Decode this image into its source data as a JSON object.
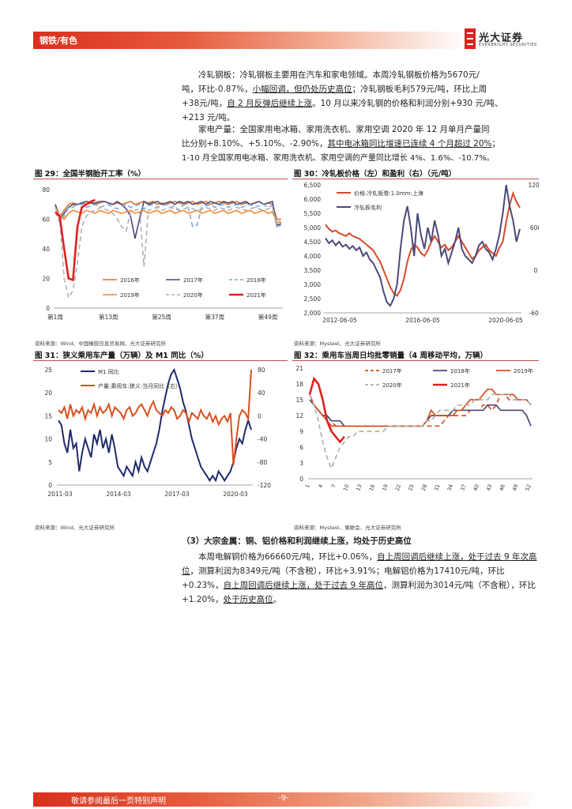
{
  "header": {
    "section": "钢铁/有色",
    "logo_cn": "光大证券",
    "logo_en": "EVERBRIGHT SECURITIES"
  },
  "paragraphs": {
    "p1_lead": "冷轧钢板：",
    "p1_a": "冷轧钢板主要用在汽车和家电领域。本周冷轧钢板价格为",
    "p1_price": "5670",
    "p1_b": "元/",
    "p1_c": "吨，环比",
    "p1_chg1": "-0.87%",
    "p1_d": "，",
    "p1_u1": "小幅回调，但仍处历史高位",
    "p1_e": "；冷轧钢板毛利",
    "p1_margin": "579",
    "p1_f": "元/吨，环比上周",
    "p1_chg2": "+38",
    "p1_g": "元/吨，",
    "p1_u2": "自 2 月反弹后继续上涨",
    "p1_h": "。10 月以来冷轧钢的价格和利润分别+930 元/吨、",
    "p1_i": "+213 元/吨。",
    "p2_lead": "家电产量：",
    "p2_a": "全国家用电冰箱、家用洗衣机、家用空调",
    "p2_year": "2020",
    "p2_b": "年",
    "p2_month": "12",
    "p2_c": "月单月产量同",
    "p2_d": "比分别",
    "p2_v1": "+8.10%",
    "p2_e": "、",
    "p2_v2": "+5.10%",
    "p2_f": "、",
    "p2_v3": "-2.90%",
    "p2_g": "，",
    "p2_u1": "其中电冰箱同比增速已连续 4 个月超过 20%",
    "p2_h": "；",
    "p2_i": "1-10 月全国家用电冰箱、家用洗衣机、家用空调的产量同比增长 4%、1.6%、-10.7%。"
  },
  "figures": {
    "f29_title": "图 29：全国半钢胎开工率（%）",
    "f29_src": "资料来源：Wind、中国橡胶信息贸易网、光大证券研究所",
    "f30_title": "图 30：冷轧板价格（左）和盈利（右）（元/吨）",
    "f30_src": "资料来源：Mysteel、光大证券研究所",
    "f31_title": "图 31：狭义乘用车产量（万辆）及 M1 同比（%）",
    "f31_src": "资料来源：Wind、光大证券研究所",
    "f32_title": "图 32：乘用车当周日均批零销量（4 周移动平均，万辆）",
    "f32_src": "资料来源：Mysteel、乘联会、光大证券研究所"
  },
  "section3": {
    "heading": "（3）大宗金属：铜、铝价格和利润继续上涨，均处于历史高位",
    "s_a": "本周电解铜价格为",
    "s_cu_price": "66660",
    "s_b": "元/吨，环比",
    "s_cu_chg": "+0.06%",
    "s_c": "，",
    "s_u1": "自上周回调后继续上涨，处于过去 9 年次高位",
    "s_d": "，测算利润为",
    "s_cu_profit": "8349",
    "s_e": "元/吨（不含税），环比",
    "s_cu_pchg": "+3.91%",
    "s_f": "；电解铝价格为",
    "s_al_price": "17410",
    "s_g": "元/吨，环比",
    "s_al_chg": "+0.23%",
    "s_h": "，",
    "s_u2": "自上周回调后继续上涨，处于过去 9 年高位",
    "s_i": "，测算利润为",
    "s_al_profit": "3014",
    "s_j": "元/吨（不含税），环比",
    "s_al_pchg": "+1.20%",
    "s_k": "，",
    "s_u3": "处于历史高位",
    "s_l": "。"
  },
  "footer": {
    "disclaimer": "敬请参阅最后一页特别声明",
    "page": "-9-"
  },
  "chart_data": [
    {
      "id": "fig29",
      "type": "line",
      "title": "",
      "ylim": [
        0,
        80
      ],
      "yticks": [
        0,
        20,
        40,
        60,
        80
      ],
      "xticks": [
        "第1周",
        "第13周",
        "第25周",
        "第37周",
        "第49周"
      ],
      "weeks": 52,
      "series": [
        {
          "name": "2016年",
          "color": "#e06c2a",
          "dash": "",
          "values": [
            70,
            62,
            66,
            70,
            71,
            70,
            71,
            70,
            71,
            70,
            71,
            72,
            71,
            70,
            71,
            70,
            71,
            72,
            70,
            71,
            72,
            71,
            72,
            70,
            71,
            70,
            71,
            72,
            71,
            70,
            71,
            72,
            70,
            71,
            72,
            70,
            71,
            72,
            71,
            70,
            71,
            72,
            70,
            71,
            70,
            71,
            72,
            70,
            71,
            70,
            60,
            60
          ]
        },
        {
          "name": "2017年",
          "color": "#4a4a7a",
          "dash": "",
          "values": [
            70,
            60,
            64,
            68,
            70,
            70,
            71,
            72,
            71,
            71,
            72,
            72,
            71,
            70,
            72,
            70,
            67,
            62,
            47,
            60,
            72,
            70,
            71,
            72,
            70,
            71,
            72,
            70,
            72,
            71,
            72,
            70,
            71,
            72,
            70,
            72,
            71,
            70,
            72,
            71,
            72,
            70,
            71,
            72,
            70,
            71,
            72,
            70,
            71,
            72,
            56,
            57
          ]
        },
        {
          "name": "2018年",
          "color": "#7fa9d8",
          "dash": "6,4",
          "values": [
            65,
            58,
            62,
            68,
            68,
            70,
            70,
            68,
            69,
            70,
            68,
            69,
            70,
            68,
            67,
            69,
            70,
            68,
            69,
            70,
            67,
            69,
            70,
            68,
            69,
            70,
            68,
            69,
            66,
            70,
            68,
            55,
            56,
            68,
            69,
            70,
            68,
            69,
            70,
            68,
            69,
            70,
            68,
            69,
            70,
            68,
            69,
            70,
            68,
            69,
            55,
            56
          ]
        },
        {
          "name": "2019年",
          "color": "#f0893c",
          "dash": "",
          "values": [
            68,
            62,
            60,
            64,
            66,
            65,
            64,
            66,
            65,
            64,
            66,
            65,
            64,
            66,
            65,
            64,
            65,
            66,
            64,
            65,
            66,
            64,
            65,
            66,
            64,
            65,
            66,
            64,
            65,
            66,
            64,
            65,
            66,
            64,
            65,
            66,
            64,
            65,
            66,
            64,
            65,
            66,
            64,
            65,
            66,
            64,
            65,
            66,
            64,
            65,
            58,
            58
          ]
        },
        {
          "name": "2020年",
          "color": "#b0b0b0",
          "dash": "6,4",
          "values": [
            68,
            60,
            20,
            7,
            12,
            30,
            55,
            62,
            65,
            66,
            68,
            67,
            66,
            64,
            60,
            55,
            52,
            65,
            66,
            67,
            28,
            66,
            67,
            68,
            66,
            67,
            68,
            67,
            66,
            67,
            68,
            67,
            66,
            67,
            68,
            67,
            66,
            68,
            67,
            66,
            67,
            68,
            67,
            66,
            67,
            68,
            67,
            66,
            67,
            68,
            57,
            60
          ]
        },
        {
          "name": "2021年",
          "color": "#e02020",
          "dash": "",
          "values": [
            65,
            62,
            40,
            20,
            19,
            55,
            68,
            70,
            72,
            73
          ]
        }
      ]
    },
    {
      "id": "fig30",
      "type": "line",
      "title": "",
      "ylim_left": [
        2000,
        6500
      ],
      "ylim_right": [
        -600,
        1200
      ],
      "yticks_left": [
        2000,
        2500,
        3000,
        3500,
        4000,
        4500,
        5000,
        5500,
        6000,
        6500
      ],
      "yticks_right": [
        -600,
        0,
        600,
        1200
      ],
      "xticks": [
        "2012-06-05",
        "2016-06-05",
        "2020-06-05"
      ],
      "series": [
        {
          "name": "价格:冷轧板卷:1.0mm:上海",
          "color": "#d94a2a",
          "axis": "left",
          "values": [
            5100,
            4950,
            4850,
            4900,
            4800,
            4750,
            4700,
            4800,
            4700,
            4650,
            4600,
            4500,
            4400,
            4300,
            4200,
            4000,
            3800,
            3500,
            3200,
            2900,
            2700,
            2600,
            2800,
            3200,
            3800,
            4200,
            4400,
            4300,
            4100,
            4000,
            4200,
            4500,
            4700,
            4500,
            4300,
            4400,
            4200,
            4300,
            4500,
            4700,
            4500,
            4300,
            4100,
            3900,
            4000,
            4200,
            4300,
            4400,
            4200,
            4100,
            4000,
            4300,
            4500,
            5200,
            5800,
            6200,
            5900,
            5700
          ]
        },
        {
          "name": "冷轧板毛利",
          "color": "#4a4a7a",
          "axis": "right",
          "values": [
            450,
            380,
            420,
            350,
            400,
            330,
            360,
            300,
            340,
            280,
            320,
            200,
            250,
            150,
            100,
            0,
            -100,
            -300,
            -450,
            -500,
            -400,
            -200,
            300,
            700,
            900,
            600,
            200,
            800,
            500,
            300,
            600,
            400,
            700,
            500,
            200,
            300,
            100,
            250,
            400,
            600,
            300,
            200,
            150,
            100,
            200,
            350,
            400,
            300,
            250,
            150,
            300,
            500,
            800,
            1200,
            900,
            700,
            400,
            580
          ]
        }
      ]
    },
    {
      "id": "fig31",
      "type": "line",
      "title": "",
      "ylim_left": [
        0,
        25
      ],
      "ylim_right": [
        -120,
        80
      ],
      "yticks_left": [
        0,
        5,
        10,
        15,
        20,
        25
      ],
      "yticks_right": [
        -120,
        -80,
        -40,
        0,
        40,
        80
      ],
      "xticks": [
        "2011-03",
        "2014-03",
        "2017-03",
        "2020-03"
      ],
      "series": [
        {
          "name": "M1 同比",
          "color": "#1e2a6b",
          "axis": "left",
          "values": [
            14,
            13,
            9,
            7,
            12,
            8,
            9,
            3,
            7,
            10,
            8,
            6,
            11,
            9,
            12,
            8,
            10,
            7,
            11,
            8,
            4,
            3,
            2,
            4,
            3,
            2,
            5,
            3,
            6,
            4,
            3,
            5,
            7,
            9,
            12,
            16,
            19,
            22,
            24,
            25,
            23,
            21,
            18,
            16,
            13,
            10,
            8,
            6,
            4,
            3,
            2,
            1,
            2,
            1,
            3,
            2,
            1,
            2,
            3,
            5,
            8,
            10,
            9,
            12,
            14,
            12
          ]
        },
        {
          "name": "产量:乘用车:狭义:当月同比（右）",
          "color": "#d9501c",
          "axis": "right",
          "values": [
            10,
            5,
            15,
            -5,
            20,
            0,
            10,
            5,
            15,
            -5,
            10,
            5,
            20,
            0,
            15,
            5,
            10,
            20,
            0,
            15,
            10,
            5,
            -5,
            10,
            15,
            0,
            5,
            15,
            20,
            10,
            0,
            15,
            25,
            10,
            5,
            0,
            10,
            5,
            15,
            10,
            -5,
            0,
            10,
            5,
            -10,
            5,
            0,
            -5,
            10,
            0,
            -5,
            5,
            -10,
            0,
            -15,
            -5,
            0,
            -10,
            5,
            -85,
            -40,
            0,
            10,
            5,
            -5,
            80
          ]
        }
      ]
    },
    {
      "id": "fig32",
      "type": "line",
      "title": "",
      "ylim": [
        0,
        21
      ],
      "yticks": [
        0,
        3,
        6,
        9,
        12,
        15,
        18,
        21
      ],
      "xticks": [
        "1",
        "4",
        "7",
        "10",
        "13",
        "16",
        "19",
        "22",
        "25",
        "28",
        "31",
        "34",
        "37",
        "40",
        "43",
        "46",
        "49",
        "52"
      ],
      "series": [
        {
          "name": "2017年",
          "color": "#d9501c",
          "dash": "6,4",
          "values": [
            16,
            14,
            13,
            12,
            12,
            11,
            10,
            10,
            10,
            10,
            10,
            10,
            10,
            10,
            10,
            10,
            10,
            10,
            10,
            10,
            10,
            10,
            10,
            10,
            10,
            10,
            10,
            10,
            10,
            10,
            10,
            11,
            12,
            12,
            12,
            12,
            12,
            13,
            13,
            13,
            14,
            14,
            13,
            14,
            16,
            16,
            15,
            15,
            15,
            15,
            15,
            14
          ]
        },
        {
          "name": "2018年",
          "color": "#4a4a7a",
          "dash": "",
          "values": [
            15,
            14,
            13,
            12,
            12,
            11,
            11,
            11,
            10,
            10,
            10,
            10,
            10,
            10,
            10,
            10,
            10,
            10,
            10,
            10,
            10,
            10,
            10,
            10,
            10,
            10,
            10,
            11,
            12,
            12,
            12,
            12,
            12,
            13,
            13,
            13,
            13,
            13,
            13,
            13,
            13,
            14,
            14,
            14,
            13,
            13,
            13,
            13,
            13,
            13,
            12,
            10
          ]
        },
        {
          "name": "2019年",
          "color": "#d9501c",
          "dash": "",
          "values": [
            16,
            14,
            13,
            12,
            11,
            10,
            10,
            10,
            10,
            10,
            10,
            10,
            10,
            10,
            10,
            10,
            10,
            10,
            10,
            10,
            10,
            10,
            10,
            10,
            10,
            10,
            10,
            11,
            13,
            12,
            12,
            12,
            12,
            12,
            13,
            13,
            14,
            15,
            15,
            15,
            16,
            17,
            17,
            16,
            16,
            16,
            16,
            16,
            15,
            15,
            15,
            14
          ]
        },
        {
          "name": "2020年",
          "color": "#b0b0b0",
          "dash": "6,4",
          "values": [
            16,
            14,
            11,
            7,
            4,
            2,
            4,
            6,
            7,
            8,
            8,
            9,
            9,
            9,
            9,
            9,
            9,
            9,
            10,
            10,
            10,
            10,
            10,
            10,
            10,
            10,
            10,
            11,
            11,
            12,
            13,
            13,
            13,
            13,
            14,
            14,
            14,
            14,
            15,
            15,
            15,
            15,
            16,
            16,
            16,
            16,
            16,
            15,
            15,
            15,
            15,
            14
          ]
        },
        {
          "name": "2021年",
          "color": "#e02020",
          "dash": "",
          "values": [
            16,
            19,
            18,
            15,
            11,
            9,
            8,
            7,
            8
          ]
        }
      ]
    }
  ]
}
